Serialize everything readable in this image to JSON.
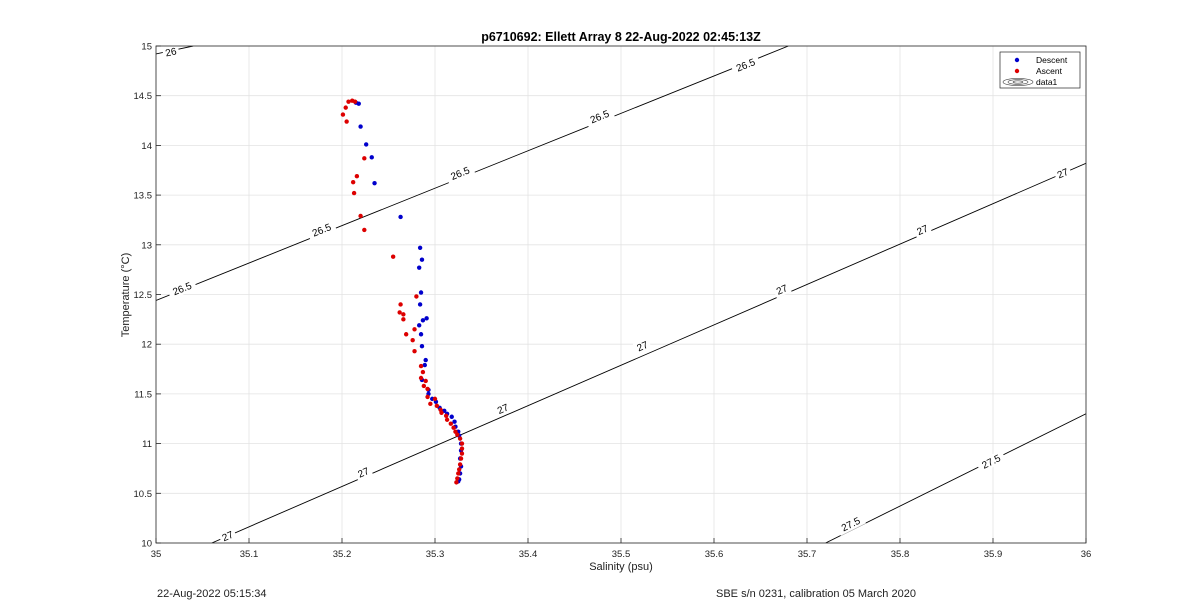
{
  "chart_data": {
    "type": "scatter",
    "title": "p6710692: Ellett Array 8 22-Aug-2022 02:45:13Z",
    "xlabel": "Salinity (psu)",
    "ylabel": "Temperature (°C)",
    "xlim": [
      35,
      36
    ],
    "ylim": [
      10,
      15
    ],
    "xticks": [
      "35",
      "35.1",
      "35.2",
      "35.3",
      "35.4",
      "35.5",
      "35.6",
      "35.7",
      "35.8",
      "35.9",
      "36"
    ],
    "yticks": [
      "10",
      "10.5",
      "11",
      "11.5",
      "12",
      "12.5",
      "13",
      "13.5",
      "14",
      "14.5",
      "15"
    ],
    "grid": true,
    "legend_position": "top-right",
    "legend": [
      "Descent",
      "Ascent",
      "data1"
    ],
    "colors": {
      "descent": "#0000cc",
      "ascent": "#dd0000",
      "contour": "#000000",
      "grid": "#e3e3e3"
    },
    "series": [
      {
        "name": "Descent",
        "points": [
          [
            35.215,
            14.43
          ],
          [
            35.218,
            14.42
          ],
          [
            35.22,
            14.19
          ],
          [
            35.226,
            14.01
          ],
          [
            35.232,
            13.88
          ],
          [
            35.235,
            13.62
          ],
          [
            35.263,
            13.28
          ],
          [
            35.284,
            12.97
          ],
          [
            35.286,
            12.85
          ],
          [
            35.283,
            12.77
          ],
          [
            35.285,
            12.52
          ],
          [
            35.284,
            12.4
          ],
          [
            35.291,
            12.26
          ],
          [
            35.287,
            12.24
          ],
          [
            35.283,
            12.19
          ],
          [
            35.285,
            12.1
          ],
          [
            35.286,
            11.98
          ],
          [
            35.29,
            11.84
          ],
          [
            35.289,
            11.79
          ],
          [
            35.286,
            11.64
          ],
          [
            35.293,
            11.54
          ],
          [
            35.293,
            11.5
          ],
          [
            35.297,
            11.45
          ],
          [
            35.301,
            11.42
          ],
          [
            35.305,
            11.36
          ],
          [
            35.31,
            11.33
          ],
          [
            35.313,
            11.3
          ],
          [
            35.318,
            11.27
          ],
          [
            35.321,
            11.22
          ],
          [
            35.322,
            11.17
          ],
          [
            35.325,
            11.12
          ],
          [
            35.326,
            11.08
          ],
          [
            35.328,
            11.0
          ],
          [
            35.328,
            10.93
          ],
          [
            35.327,
            10.85
          ],
          [
            35.328,
            10.77
          ],
          [
            35.327,
            10.7
          ],
          [
            35.326,
            10.64
          ],
          [
            35.325,
            10.62
          ]
        ]
      },
      {
        "name": "Ascent",
        "points": [
          [
            35.207,
            14.44
          ],
          [
            35.211,
            14.45
          ],
          [
            35.214,
            14.44
          ],
          [
            35.204,
            14.38
          ],
          [
            35.201,
            14.31
          ],
          [
            35.205,
            14.24
          ],
          [
            35.224,
            13.87
          ],
          [
            35.216,
            13.69
          ],
          [
            35.212,
            13.63
          ],
          [
            35.213,
            13.52
          ],
          [
            35.22,
            13.29
          ],
          [
            35.224,
            13.15
          ],
          [
            35.255,
            12.88
          ],
          [
            35.28,
            12.48
          ],
          [
            35.263,
            12.4
          ],
          [
            35.262,
            12.32
          ],
          [
            35.266,
            12.3
          ],
          [
            35.266,
            12.25
          ],
          [
            35.278,
            12.15
          ],
          [
            35.269,
            12.1
          ],
          [
            35.276,
            12.04
          ],
          [
            35.278,
            11.93
          ],
          [
            35.285,
            11.78
          ],
          [
            35.287,
            11.72
          ],
          [
            35.285,
            11.66
          ],
          [
            35.29,
            11.63
          ],
          [
            35.288,
            11.58
          ],
          [
            35.292,
            11.55
          ],
          [
            35.292,
            11.47
          ],
          [
            35.3,
            11.45
          ],
          [
            35.302,
            11.38
          ],
          [
            35.295,
            11.4
          ],
          [
            35.306,
            11.34
          ],
          [
            35.307,
            11.31
          ],
          [
            35.312,
            11.28
          ],
          [
            35.313,
            11.24
          ],
          [
            35.317,
            11.2
          ],
          [
            35.32,
            11.16
          ],
          [
            35.322,
            11.12
          ],
          [
            35.324,
            11.09
          ],
          [
            35.327,
            11.05
          ],
          [
            35.329,
            11.0
          ],
          [
            35.329,
            10.95
          ],
          [
            35.329,
            10.9
          ],
          [
            35.328,
            10.85
          ],
          [
            35.327,
            10.79
          ],
          [
            35.326,
            10.74
          ],
          [
            35.325,
            10.7
          ],
          [
            35.324,
            10.65
          ],
          [
            35.323,
            10.61
          ]
        ]
      }
    ],
    "contours": [
      {
        "sigma": "26",
        "line": [
          [
            34.96,
            14.84
          ],
          [
            35.04,
            15.0
          ]
        ],
        "labels": [
          {
            "x": 35.016,
            "y": 14.94
          }
        ]
      },
      {
        "sigma": "26.5",
        "line": [
          [
            35.0,
            12.44
          ],
          [
            35.68,
            15.0
          ]
        ],
        "labels": [
          {
            "x": 35.028,
            "y": 12.56
          },
          {
            "x": 35.178,
            "y": 13.15
          },
          {
            "x": 35.327,
            "y": 13.72
          },
          {
            "x": 35.477,
            "y": 14.29
          },
          {
            "x": 35.634,
            "y": 14.81
          }
        ]
      },
      {
        "sigma": "27",
        "line": [
          [
            35.06,
            10.0
          ],
          [
            36.0,
            13.82
          ]
        ],
        "labels": [
          {
            "x": 35.077,
            "y": 10.07
          },
          {
            "x": 35.223,
            "y": 10.71
          },
          {
            "x": 35.373,
            "y": 11.35
          },
          {
            "x": 35.523,
            "y": 11.98
          },
          {
            "x": 35.673,
            "y": 12.55
          },
          {
            "x": 35.824,
            "y": 13.15
          },
          {
            "x": 35.975,
            "y": 13.72
          }
        ]
      },
      {
        "sigma": "27.5",
        "line": [
          [
            35.72,
            10.0
          ],
          [
            36.0,
            11.3
          ]
        ],
        "labels": [
          {
            "x": 35.747,
            "y": 10.19
          },
          {
            "x": 35.898,
            "y": 10.82
          }
        ]
      }
    ]
  },
  "footer": {
    "timestamp": "22-Aug-2022 05:15:34",
    "instrument": "SBE s/n 0231, calibration 05 March 2020"
  }
}
